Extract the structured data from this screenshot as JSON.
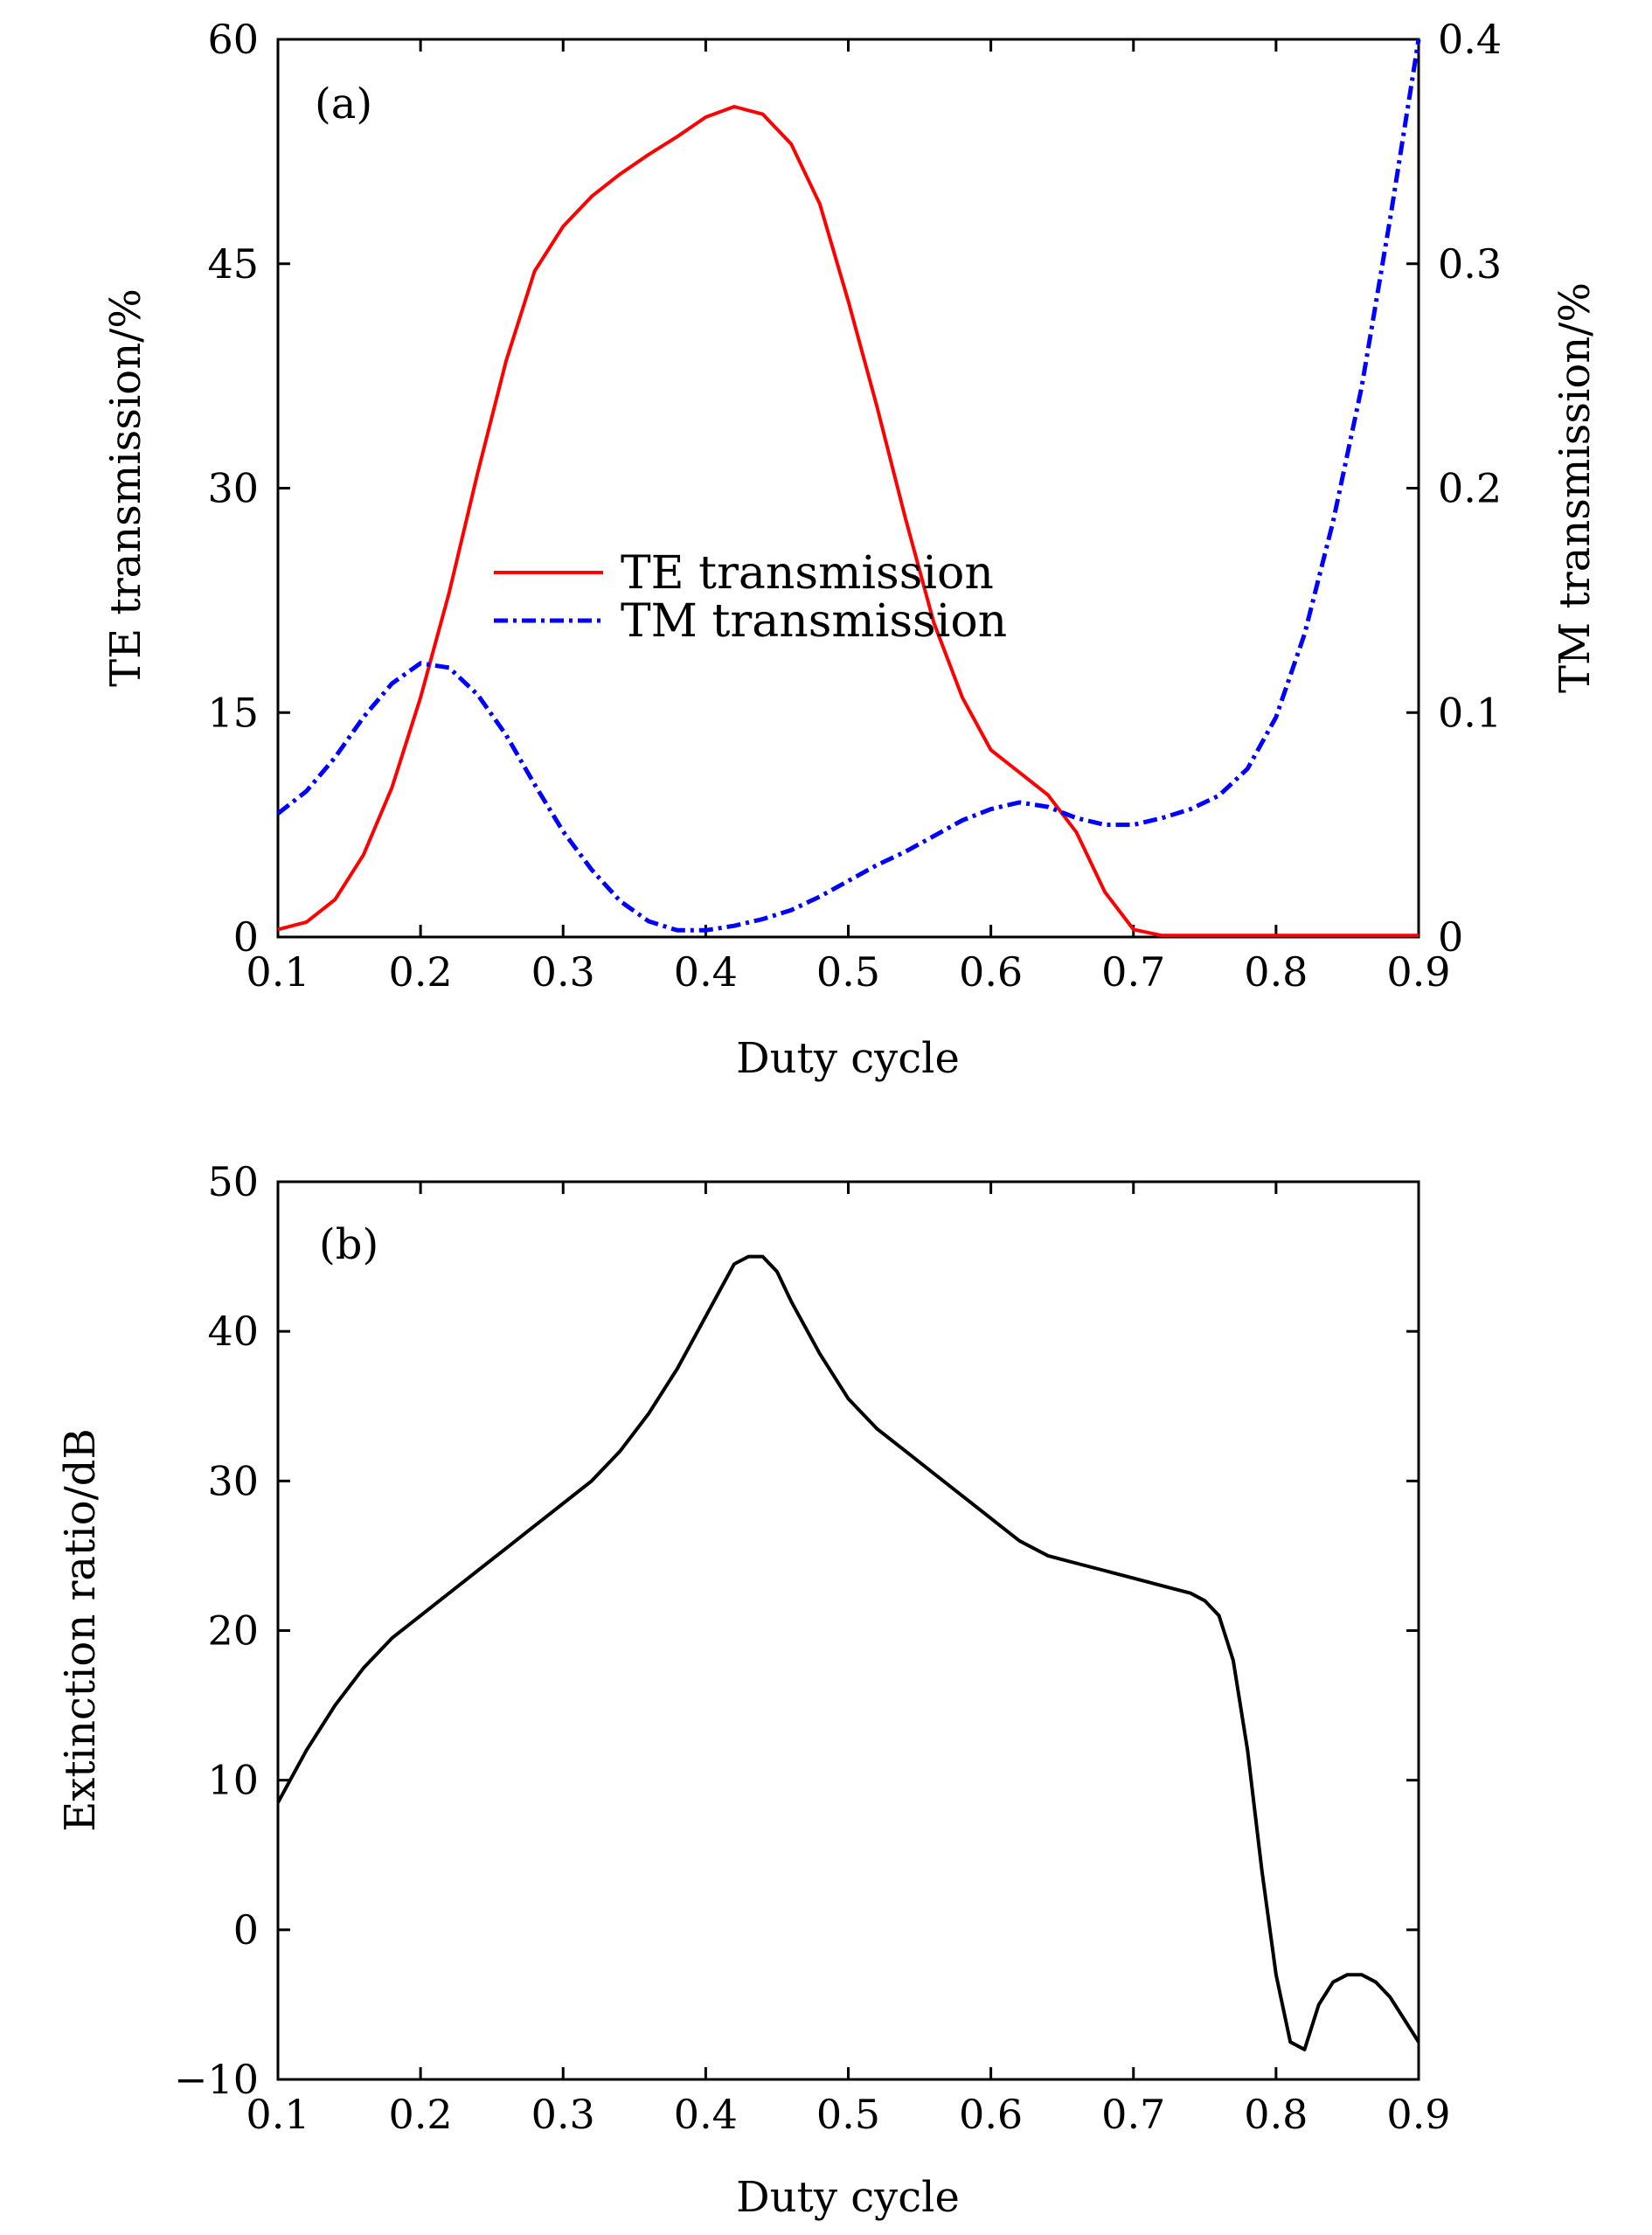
{
  "chart_data": [
    {
      "type": "line",
      "panel_label": "(a)",
      "xlabel": "Duty cycle",
      "ylabel": "TE transmission/%",
      "y2label": "TM transmission/%",
      "xlim": [
        0.1,
        0.9
      ],
      "ylim": [
        0,
        60
      ],
      "y2lim": [
        0,
        0.4
      ],
      "xticks": [
        "0.1",
        "0.2",
        "0.3",
        "0.4",
        "0.5",
        "0.6",
        "0.7",
        "0.8",
        "0.9"
      ],
      "yticks": [
        "0",
        "15",
        "30",
        "45",
        "60"
      ],
      "y2ticks": [
        "0",
        "0.1",
        "0.2",
        "0.3",
        "0.4"
      ],
      "legend_position": "center",
      "series": [
        {
          "name": "TE transmission",
          "axis": "left",
          "color": "#ff0000",
          "style": "solid",
          "x": [
            0.1,
            0.12,
            0.14,
            0.16,
            0.18,
            0.2,
            0.22,
            0.24,
            0.26,
            0.28,
            0.3,
            0.32,
            0.34,
            0.36,
            0.38,
            0.4,
            0.42,
            0.44,
            0.46,
            0.48,
            0.5,
            0.52,
            0.54,
            0.56,
            0.58,
            0.6,
            0.62,
            0.64,
            0.66,
            0.68,
            0.7,
            0.72,
            0.74,
            0.76,
            0.78,
            0.8,
            0.82,
            0.84,
            0.86,
            0.88,
            0.9
          ],
          "y": [
            0.5,
            1.0,
            2.5,
            5.5,
            10.0,
            16.0,
            23.0,
            31.0,
            38.5,
            44.5,
            47.5,
            49.5,
            51.0,
            52.3,
            53.5,
            54.8,
            55.5,
            55.0,
            53.0,
            49.0,
            42.5,
            35.5,
            28.0,
            21.0,
            16.0,
            12.5,
            11.0,
            9.5,
            7.0,
            3.0,
            0.5,
            0.1,
            0.1,
            0.1,
            0.1,
            0.1,
            0.1,
            0.1,
            0.1,
            0.1,
            0.1
          ]
        },
        {
          "name": "TM transmission",
          "axis": "right",
          "color": "#0000ff",
          "style": "dashdot",
          "x": [
            0.1,
            0.12,
            0.14,
            0.16,
            0.18,
            0.2,
            0.22,
            0.24,
            0.26,
            0.28,
            0.3,
            0.32,
            0.34,
            0.36,
            0.38,
            0.4,
            0.42,
            0.44,
            0.46,
            0.48,
            0.5,
            0.52,
            0.54,
            0.56,
            0.58,
            0.6,
            0.62,
            0.64,
            0.66,
            0.68,
            0.7,
            0.72,
            0.74,
            0.76,
            0.78,
            0.8,
            0.82,
            0.84,
            0.86,
            0.88,
            0.9
          ],
          "y": [
            0.055,
            0.065,
            0.08,
            0.098,
            0.113,
            0.122,
            0.12,
            0.108,
            0.09,
            0.068,
            0.047,
            0.03,
            0.016,
            0.007,
            0.003,
            0.003,
            0.005,
            0.008,
            0.012,
            0.018,
            0.025,
            0.032,
            0.038,
            0.045,
            0.052,
            0.057,
            0.06,
            0.058,
            0.053,
            0.05,
            0.05,
            0.053,
            0.057,
            0.063,
            0.075,
            0.098,
            0.135,
            0.185,
            0.245,
            0.32,
            0.4
          ]
        }
      ]
    },
    {
      "type": "line",
      "panel_label": "(b)",
      "xlabel": "Duty cycle",
      "ylabel": "Extinction ratio/dB",
      "xlim": [
        0.1,
        0.9
      ],
      "ylim": [
        -10,
        50
      ],
      "xticks": [
        "0.1",
        "0.2",
        "0.3",
        "0.4",
        "0.5",
        "0.6",
        "0.7",
        "0.8",
        "0.9"
      ],
      "yticks": [
        "−10",
        "0",
        "10",
        "20",
        "30",
        "40",
        "50"
      ],
      "series": [
        {
          "name": "Extinction ratio",
          "color": "#000000",
          "style": "solid",
          "x": [
            0.1,
            0.12,
            0.14,
            0.16,
            0.18,
            0.2,
            0.22,
            0.24,
            0.26,
            0.28,
            0.3,
            0.32,
            0.34,
            0.36,
            0.38,
            0.4,
            0.42,
            0.43,
            0.44,
            0.45,
            0.46,
            0.48,
            0.5,
            0.52,
            0.54,
            0.56,
            0.58,
            0.6,
            0.62,
            0.64,
            0.66,
            0.68,
            0.7,
            0.72,
            0.74,
            0.75,
            0.76,
            0.77,
            0.78,
            0.79,
            0.8,
            0.81,
            0.82,
            0.83,
            0.84,
            0.85,
            0.86,
            0.87,
            0.88,
            0.89,
            0.9
          ],
          "y": [
            8.5,
            12.0,
            15.0,
            17.5,
            19.5,
            21.0,
            22.5,
            24.0,
            25.5,
            27.0,
            28.5,
            30.0,
            32.0,
            34.5,
            37.5,
            41.0,
            44.5,
            45.0,
            45.0,
            44.0,
            42.0,
            38.5,
            35.5,
            33.5,
            32.0,
            30.5,
            29.0,
            27.5,
            26.0,
            25.0,
            24.5,
            24.0,
            23.5,
            23.0,
            22.5,
            22.0,
            21.0,
            18.0,
            12.0,
            4.0,
            -3.0,
            -7.5,
            -8.0,
            -5.0,
            -3.5,
            -3.0,
            -3.0,
            -3.5,
            -4.5,
            -6.0,
            -7.5
          ]
        }
      ]
    }
  ]
}
